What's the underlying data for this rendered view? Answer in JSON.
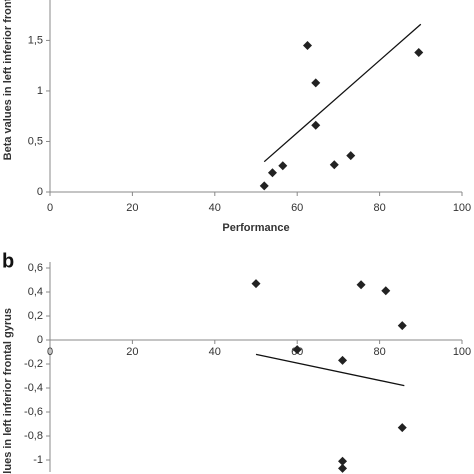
{
  "chart_data": [
    {
      "type": "scatter",
      "panel": "a",
      "x_label": "Performance",
      "y_label": "Beta values in left inferior fronta",
      "x": [
        52,
        54,
        56.5,
        62.5,
        64.5,
        64.5,
        69,
        73,
        89.5
      ],
      "values": [
        0.06,
        0.19,
        0.26,
        1.45,
        1.08,
        0.66,
        0.27,
        0.36,
        1.38
      ],
      "trendline": {
        "x": [
          52,
          90
        ],
        "values": [
          0.3,
          1.66
        ]
      },
      "color": "#222222",
      "xlim": [
        0,
        100
      ],
      "xticks": [
        0,
        20,
        40,
        60,
        80,
        100
      ],
      "ylim": [
        0,
        1.9
      ],
      "yticks": [
        0,
        {
          "value": 0.5,
          "label": "0,5"
        },
        1,
        {
          "value": 1.5,
          "label": "1,5"
        }
      ]
    },
    {
      "type": "scatter",
      "panel": "b",
      "y_label": "values in left inferior frontal gyrus",
      "x": [
        50,
        60,
        71,
        75.5,
        81.5,
        85.5,
        85.5,
        71,
        71
      ],
      "values": [
        0.47,
        -0.08,
        -0.17,
        0.46,
        0.41,
        0.12,
        -0.73,
        -1.01,
        -1.07
      ],
      "trendline": {
        "x": [
          50,
          86
        ],
        "values": [
          -0.12,
          -0.38
        ]
      },
      "color": "#222222",
      "xlim": [
        0,
        100
      ],
      "xticks": [
        0,
        20,
        40,
        60,
        80,
        100
      ],
      "ylim": [
        -1.1,
        0.65
      ],
      "yticks": [
        {
          "value": -1,
          "label": "-1"
        },
        {
          "value": -0.8,
          "label": "-0,8"
        },
        {
          "value": -0.6,
          "label": "-0,6"
        },
        {
          "value": -0.4,
          "label": "-0,4"
        },
        {
          "value": -0.2,
          "label": "-0,2"
        },
        0,
        {
          "value": 0.2,
          "label": "0,2"
        },
        {
          "value": 0.4,
          "label": "0,4"
        },
        {
          "value": 0.6,
          "label": "0,6"
        }
      ]
    }
  ]
}
